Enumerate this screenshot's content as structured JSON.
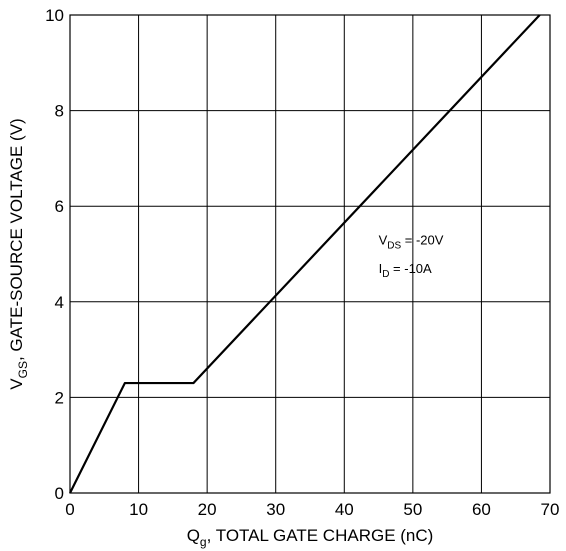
{
  "chart_data": {
    "type": "line",
    "x_axis": {
      "label_main": "Q",
      "label_sub": "g",
      "label_rest": ", TOTAL GATE CHARGE (nC)",
      "range": [
        0,
        70
      ],
      "ticks": [
        0,
        10,
        20,
        30,
        40,
        50,
        60,
        70
      ],
      "tick_labels": [
        "0",
        "10",
        "20",
        "30",
        "40",
        "50",
        "60",
        "70"
      ]
    },
    "y_axis": {
      "label_main": "V",
      "label_sub": "GS",
      "label_rest": ", GATE-SOURCE VOLTAGE (V)",
      "range": [
        0,
        10
      ],
      "ticks": [
        0,
        2,
        4,
        6,
        8,
        10
      ],
      "tick_labels": [
        "0",
        "2",
        "4",
        "6",
        "8",
        "10"
      ]
    },
    "grid": true,
    "series": [
      {
        "x": [
          0,
          8,
          18,
          68.5
        ],
        "y": [
          0,
          2.3,
          2.3,
          10
        ]
      }
    ],
    "annotations": [
      {
        "main": "V",
        "sub": "DS",
        "rest": " = -20V",
        "x": 45,
        "y": 5.2
      },
      {
        "main": "I",
        "sub": "D",
        "rest": " = -10A",
        "x": 45,
        "y": 4.6
      }
    ]
  }
}
